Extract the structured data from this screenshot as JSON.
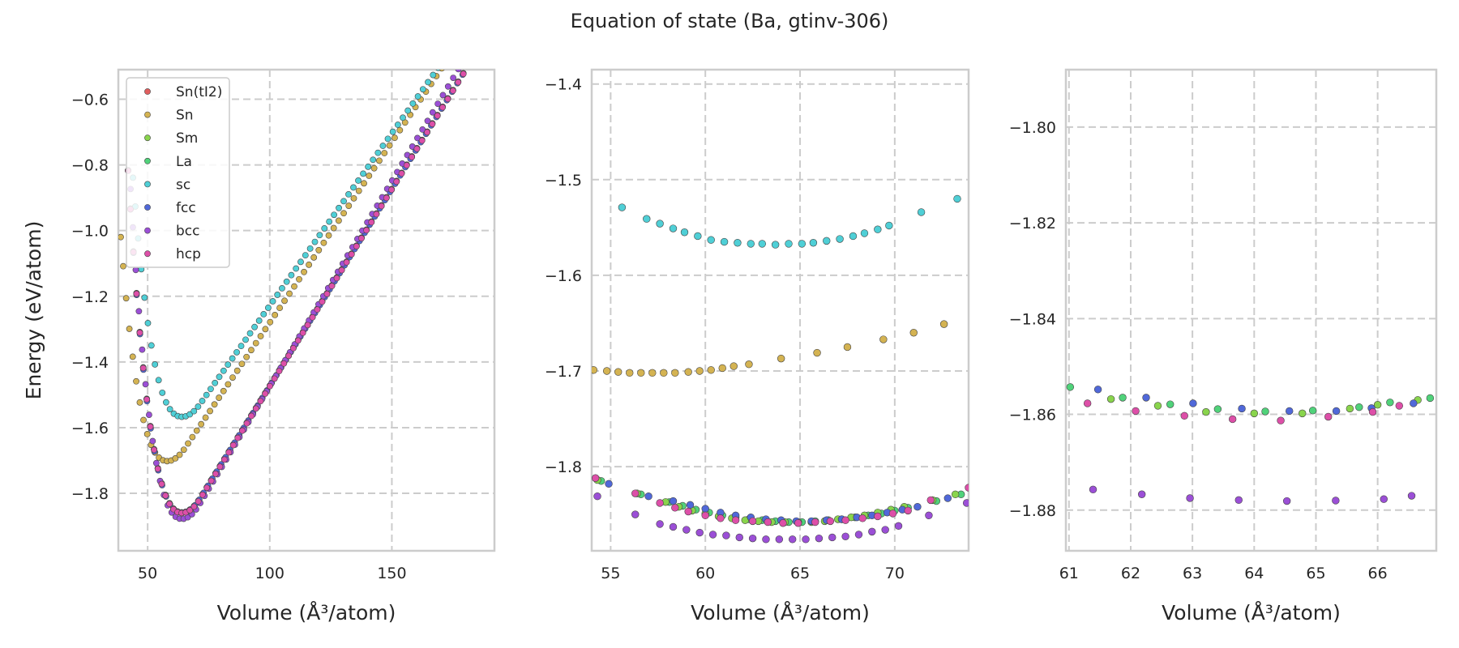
{
  "figure": {
    "title": "Equation of state (Ba, gtinv-306)"
  },
  "chart_data": [
    {
      "type": "scatter",
      "panel": "overview",
      "title": "",
      "xlabel": "Volume (Å³/atom)",
      "ylabel": "Energy (eV/atom)",
      "xlim": [
        38,
        192
      ],
      "ylim": [
        -1.975,
        -0.51
      ],
      "xticks": [
        50,
        100,
        150
      ],
      "yticks": [
        -1.8,
        -1.6,
        -1.4,
        -1.2,
        -1.0,
        -0.8,
        -0.6
      ],
      "ytick_labels": [
        "−1.8",
        "−1.6",
        "−1.4",
        "−1.2",
        "−1.0",
        "−0.8",
        "−0.6"
      ],
      "grid": true,
      "legend": "top-left",
      "series_model": [
        {
          "name": "Sn(tI2)",
          "color": "#e05d5d",
          "v0": 64,
          "e0": -1.858,
          "a": 0.00078,
          "slope": 0.012,
          "vmin": 42,
          "vmax": 190,
          "n": 80
        },
        {
          "name": "Sn",
          "color": "#d4b352",
          "v0": 58,
          "e0": -1.702,
          "a": 0.00075,
          "slope": 0.011,
          "vmin": 39,
          "vmax": 190,
          "n": 80
        },
        {
          "name": "Sm",
          "color": "#89d44c",
          "v0": 64,
          "e0": -1.859,
          "a": 0.00078,
          "slope": 0.012,
          "vmin": 42,
          "vmax": 190,
          "n": 80
        },
        {
          "name": "La",
          "color": "#50d27a",
          "v0": 64,
          "e0": -1.859,
          "a": 0.00078,
          "slope": 0.012,
          "vmin": 42,
          "vmax": 190,
          "n": 80
        },
        {
          "name": "sc",
          "color": "#4fcfd6",
          "v0": 64,
          "e0": -1.567,
          "a": 0.0007,
          "slope": 0.0105,
          "vmin": 44,
          "vmax": 190,
          "n": 80
        },
        {
          "name": "fcc",
          "color": "#5068d9",
          "v0": 64,
          "e0": -1.859,
          "a": 0.00078,
          "slope": 0.012,
          "vmin": 42,
          "vmax": 192,
          "n": 80
        },
        {
          "name": "bcc",
          "color": "#9b4fd6",
          "v0": 64,
          "e0": -1.878,
          "a": 0.00085,
          "slope": 0.0125,
          "vmin": 43,
          "vmax": 190,
          "n": 80
        },
        {
          "name": "hcp",
          "color": "#dd4fa8",
          "v0": 64,
          "e0": -1.86,
          "a": 0.00078,
          "slope": 0.012,
          "vmin": 42,
          "vmax": 190,
          "n": 80
        }
      ]
    },
    {
      "type": "scatter",
      "panel": "zoom-1",
      "xlabel": "Volume (Å³/atom)",
      "ylabel": "",
      "xlim": [
        54.0,
        73.9
      ],
      "ylim": [
        -1.888,
        -1.385
      ],
      "xticks": [
        55,
        60,
        65,
        70
      ],
      "yticks": [
        -1.8,
        -1.7,
        -1.6,
        -1.5,
        -1.4
      ],
      "ytick_labels": [
        "−1.8",
        "−1.7",
        "−1.6",
        "−1.5",
        "−1.4"
      ],
      "grid": true,
      "series": [
        {
          "name": "sc",
          "x": [
            55.6,
            56.9,
            57.6,
            58.3,
            58.9,
            59.6,
            60.3,
            61.0,
            61.7,
            62.4,
            63.0,
            63.7,
            64.4,
            65.1,
            65.7,
            66.4,
            67.1,
            67.8,
            68.4,
            69.1,
            69.7,
            71.4,
            73.3
          ],
          "y": [
            -1.529,
            -1.541,
            -1.546,
            -1.551,
            -1.555,
            -1.559,
            -1.563,
            -1.565,
            -1.566,
            -1.567,
            -1.567,
            -1.568,
            -1.567,
            -1.567,
            -1.566,
            -1.564,
            -1.562,
            -1.559,
            -1.556,
            -1.552,
            -1.548,
            -1.534,
            -1.52
          ]
        },
        {
          "name": "Sn",
          "x": [
            54.1,
            54.8,
            55.4,
            56.0,
            56.6,
            57.2,
            57.8,
            58.4,
            59.1,
            59.7,
            60.3,
            60.9,
            61.5,
            62.3,
            64.0,
            65.9,
            67.5,
            69.4,
            71.0,
            72.6
          ],
          "y": [
            -1.699,
            -1.7,
            -1.701,
            -1.702,
            -1.702,
            -1.702,
            -1.702,
            -1.702,
            -1.701,
            -1.7,
            -1.699,
            -1.697,
            -1.695,
            -1.693,
            -1.687,
            -1.681,
            -1.675,
            -1.667,
            -1.66,
            -1.651
          ]
        },
        {
          "name": "La",
          "x": [
            54.5,
            56.6,
            58.1,
            58.8,
            59.5,
            60.2,
            60.9,
            61.6,
            62.3,
            63.0,
            63.7,
            64.4,
            65.1,
            65.8,
            66.5,
            67.2,
            67.9,
            68.6,
            69.3,
            70.0,
            70.7,
            72.2,
            73.5
          ],
          "y": [
            -1.815,
            -1.829,
            -1.837,
            -1.841,
            -1.845,
            -1.848,
            -1.851,
            -1.853,
            -1.855,
            -1.856,
            -1.857,
            -1.858,
            -1.858,
            -1.857,
            -1.856,
            -1.855,
            -1.853,
            -1.851,
            -1.849,
            -1.846,
            -1.843,
            -1.836,
            -1.829
          ]
        },
        {
          "name": "Sm",
          "x": [
            54.3,
            56.4,
            57.9,
            58.6,
            59.3,
            60.0,
            60.7,
            61.4,
            62.1,
            62.8,
            63.5,
            64.2,
            64.9,
            65.6,
            66.3,
            67.0,
            67.7,
            68.4,
            69.1,
            69.8,
            70.5,
            72.0,
            73.2
          ],
          "y": [
            -1.814,
            -1.828,
            -1.837,
            -1.842,
            -1.846,
            -1.849,
            -1.852,
            -1.854,
            -1.856,
            -1.857,
            -1.858,
            -1.858,
            -1.858,
            -1.858,
            -1.857,
            -1.855,
            -1.853,
            -1.851,
            -1.848,
            -1.845,
            -1.842,
            -1.835,
            -1.829
          ]
        },
        {
          "name": "fcc",
          "x": [
            54.9,
            57.0,
            58.3,
            59.2,
            60.0,
            60.8,
            61.6,
            62.4,
            63.2,
            64.0,
            64.8,
            65.6,
            66.4,
            67.2,
            68.0,
            68.8,
            69.6,
            70.4,
            71.2,
            72.8
          ],
          "y": [
            -1.818,
            -1.831,
            -1.836,
            -1.84,
            -1.844,
            -1.848,
            -1.851,
            -1.853,
            -1.855,
            -1.856,
            -1.857,
            -1.857,
            -1.856,
            -1.855,
            -1.853,
            -1.851,
            -1.848,
            -1.845,
            -1.842,
            -1.833
          ]
        },
        {
          "name": "hcp",
          "x": [
            54.2,
            56.3,
            57.6,
            58.4,
            59.1,
            60.0,
            60.8,
            61.6,
            62.5,
            63.3,
            64.1,
            64.9,
            65.8,
            66.6,
            67.4,
            68.3,
            69.1,
            69.9,
            70.7,
            71.9,
            73.9
          ],
          "y": [
            -1.812,
            -1.828,
            -1.838,
            -1.843,
            -1.847,
            -1.851,
            -1.854,
            -1.856,
            -1.857,
            -1.858,
            -1.859,
            -1.859,
            -1.858,
            -1.857,
            -1.856,
            -1.854,
            -1.852,
            -1.849,
            -1.846,
            -1.835,
            -1.822
          ]
        },
        {
          "name": "bcc",
          "x": [
            54.3,
            56.3,
            57.6,
            58.3,
            59.0,
            59.7,
            60.4,
            61.1,
            61.8,
            62.5,
            63.2,
            63.9,
            64.6,
            65.3,
            66.0,
            66.7,
            67.4,
            68.1,
            68.8,
            69.5,
            70.2,
            71.8,
            73.8
          ],
          "y": [
            -1.831,
            -1.85,
            -1.86,
            -1.863,
            -1.866,
            -1.869,
            -1.871,
            -1.872,
            -1.874,
            -1.875,
            -1.876,
            -1.876,
            -1.876,
            -1.876,
            -1.875,
            -1.874,
            -1.873,
            -1.871,
            -1.868,
            -1.866,
            -1.862,
            -1.851,
            -1.838
          ]
        }
      ]
    },
    {
      "type": "scatter",
      "panel": "zoom-2",
      "xlabel": "Volume (Å³/atom)",
      "ylabel": "",
      "xlim": [
        60.95,
        66.95
      ],
      "ylim": [
        -1.8885,
        -1.788
      ],
      "xticks": [
        61,
        62,
        63,
        64,
        65,
        66
      ],
      "yticks": [
        -1.88,
        -1.86,
        -1.84,
        -1.82,
        -1.8
      ],
      "ytick_labels": [
        "−1.88",
        "−1.86",
        "−1.84",
        "−1.82",
        "−1.80"
      ],
      "grid": true,
      "series": [
        {
          "name": "La",
          "x": [
            61.02,
            61.87,
            62.64,
            63.41,
            64.18,
            64.95,
            65.7,
            66.2,
            66.85
          ],
          "y": [
            -1.8543,
            -1.8565,
            -1.8579,
            -1.8589,
            -1.8594,
            -1.8592,
            -1.8585,
            -1.8575,
            -1.8566
          ]
        },
        {
          "name": "Sm",
          "x": [
            61.68,
            62.44,
            63.22,
            64.0,
            64.78,
            65.55,
            66.0,
            66.65
          ],
          "y": [
            -1.8568,
            -1.8582,
            -1.8595,
            -1.8598,
            -1.8598,
            -1.8588,
            -1.858,
            -1.857
          ]
        },
        {
          "name": "fcc",
          "x": [
            61.47,
            62.25,
            63.01,
            63.8,
            64.57,
            65.33,
            65.9,
            66.58
          ],
          "y": [
            -1.8548,
            -1.8565,
            -1.8577,
            -1.8588,
            -1.8593,
            -1.8593,
            -1.8587,
            -1.8577
          ]
        },
        {
          "name": "hcp",
          "x": [
            61.3,
            62.08,
            62.87,
            63.65,
            64.43,
            65.2,
            65.92,
            66.35
          ],
          "y": [
            -1.8577,
            -1.8593,
            -1.8603,
            -1.861,
            -1.8613,
            -1.8605,
            -1.8595,
            -1.8582
          ]
        },
        {
          "name": "bcc",
          "x": [
            61.39,
            62.18,
            62.96,
            63.75,
            64.53,
            65.32,
            66.1,
            66.55
          ],
          "y": [
            -1.8757,
            -1.8767,
            -1.8775,
            -1.8779,
            -1.8781,
            -1.878,
            -1.8777,
            -1.877
          ]
        }
      ]
    }
  ],
  "legend": {
    "items": [
      {
        "label": "Sn(tI2)",
        "color": "#e05d5d"
      },
      {
        "label": "Sn",
        "color": "#d4b352"
      },
      {
        "label": "Sm",
        "color": "#89d44c"
      },
      {
        "label": "La",
        "color": "#50d27a"
      },
      {
        "label": "sc",
        "color": "#4fcfd6"
      },
      {
        "label": "fcc",
        "color": "#5068d9"
      },
      {
        "label": "bcc",
        "color": "#9b4fd6"
      },
      {
        "label": "hcp",
        "color": "#dd4fa8"
      }
    ]
  },
  "colors": {
    "text": "#262626",
    "grid": "#cccccc",
    "spine": "#cccccc",
    "marker_edge": "#444444"
  }
}
